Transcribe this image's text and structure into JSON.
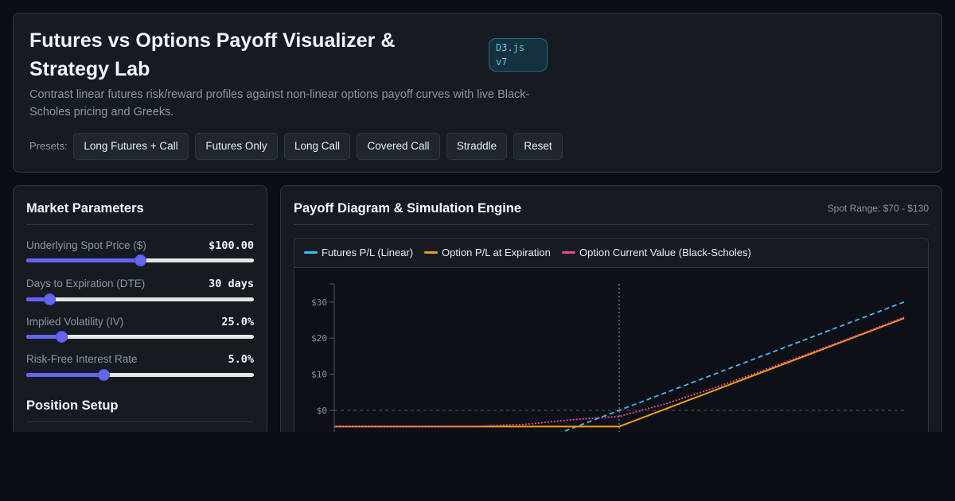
{
  "header": {
    "title": "Futures vs Options Payoff Visualizer & Strategy Lab",
    "badge": "D3.js v7",
    "subtitle": "Contrast linear futures risk/reward profiles against non-linear options payoff curves with live Black-Scholes pricing and Greeks.",
    "presets_label": "Presets:",
    "presets": [
      {
        "label": "Long Futures + Call",
        "active": true
      },
      {
        "label": "Futures Only",
        "active": false
      },
      {
        "label": "Long Call",
        "active": false
      },
      {
        "label": "Covered Call",
        "active": false
      },
      {
        "label": "Straddle",
        "active": false
      },
      {
        "label": "Reset",
        "active": false
      }
    ]
  },
  "market": {
    "title": "Market Parameters",
    "params": [
      {
        "label": "Underlying Spot Price ($)",
        "value": "$100.00",
        "level": 0.5
      },
      {
        "label": "Days to Expiration (DTE)",
        "value": "30 days",
        "level": 0.1
      },
      {
        "label": "Implied Volatility (IV)",
        "value": "25.0%",
        "level": 0.155
      },
      {
        "label": "Risk-Free Interest Rate",
        "value": "5.0%",
        "level": 0.34
      }
    ],
    "position_title": "Position Setup"
  },
  "chart_panel": {
    "title": "Payoff Diagram & Simulation Engine",
    "spot_range": "Spot Range: $70 - $130",
    "legend": [
      {
        "label": "Futures P/L (Linear)",
        "color": "#38bdf8"
      },
      {
        "label": "Option P/L at Expiration",
        "color": "#f59e0b"
      },
      {
        "label": "Option Current Value (Black-Scholes)",
        "color": "#ec4899"
      }
    ]
  },
  "chart_data": {
    "type": "line",
    "x_range": [
      70,
      130
    ],
    "ylim": [
      -5,
      35
    ],
    "yticks": [
      "$30",
      "$20",
      "$10",
      "$0"
    ],
    "ytick_values": [
      30,
      20,
      10,
      0
    ],
    "reference_x": 100,
    "series": [
      {
        "name": "Futures P/L (Linear)",
        "color": "#38bdf8",
        "style": "dashed",
        "x": [
          70,
          100,
          130
        ],
        "y": [
          -30,
          0,
          30
        ]
      },
      {
        "name": "Option P/L at Expiration",
        "color": "#f59e0b",
        "style": "solid",
        "x": [
          70,
          100,
          130
        ],
        "y": [
          -4.5,
          -4.5,
          25.5
        ]
      },
      {
        "name": "Option Current Value (Black-Scholes)",
        "color": "#ec4899",
        "style": "dotted",
        "x": [
          70,
          85,
          90,
          95,
          100,
          105,
          110,
          115,
          120,
          125,
          130
        ],
        "y": [
          -4.5,
          -4.4,
          -3.9,
          -2.6,
          -1.7,
          1.9,
          6.2,
          10.9,
          15.8,
          20.7,
          25.8
        ]
      }
    ]
  }
}
